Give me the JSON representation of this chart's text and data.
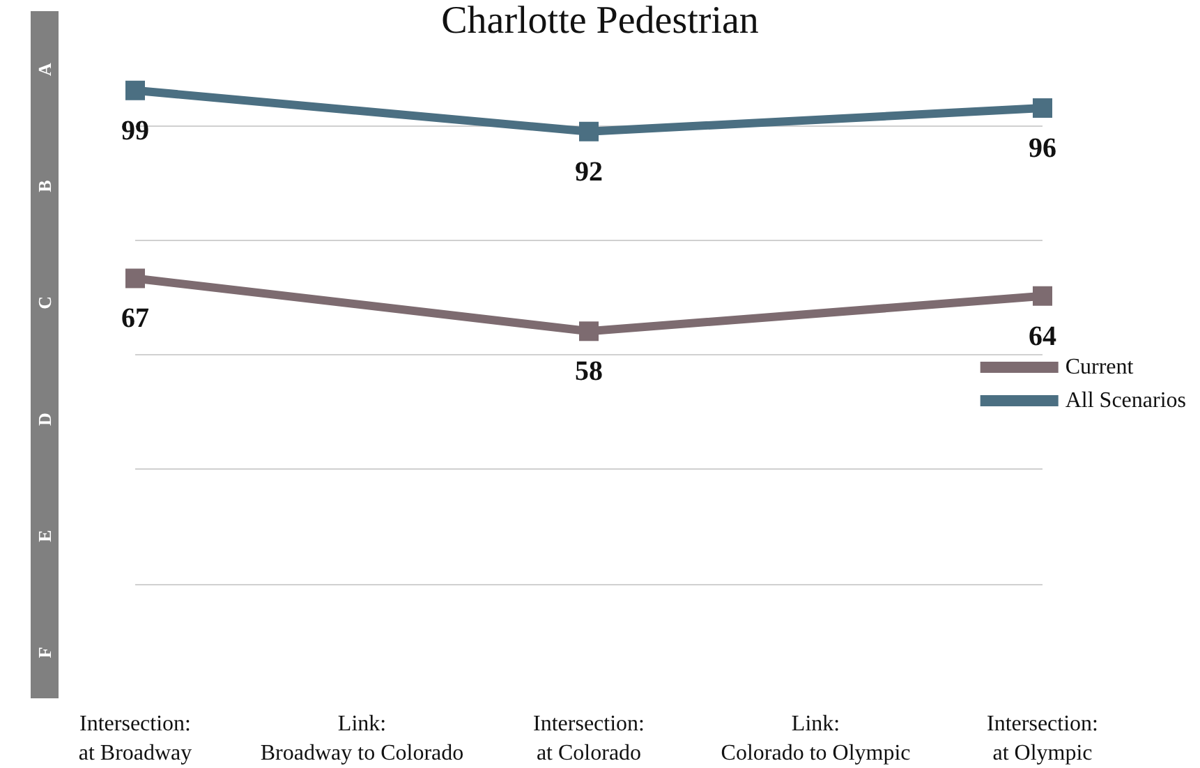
{
  "chart_data": {
    "type": "line",
    "title": "Charlotte Pedestrian",
    "categories": [
      "Intersection:\nat Broadway",
      "Link:\nBroadway to Colorado",
      "Intersection:\nat Colorado",
      "Link:\nColorado to Olympic",
      "Intersection:\nat Olympic"
    ],
    "series": [
      {
        "name": "Current",
        "color": "#7d6b70",
        "x": [
          "Intersection:\nat Broadway",
          "Intersection:\nat Colorado",
          "Intersection:\nat Olympic"
        ],
        "values": [
          67,
          58,
          64
        ]
      },
      {
        "name": "All Scenarios",
        "color": "#4b6f82",
        "x": [
          "Intersection:\nat Broadway",
          "Intersection:\nat Colorado",
          "Intersection:\nat Olympic"
        ],
        "values": [
          99,
          92,
          96
        ]
      }
    ],
    "annotations": [
      "A",
      "B",
      "C",
      "D",
      "E",
      "F"
    ],
    "ref_lines": [
      {
        "axis": "y",
        "value": 93,
        "color": "#d0d0d0"
      },
      {
        "axis": "y",
        "value": 73.5,
        "color": "#d0d0d0"
      },
      {
        "axis": "y",
        "value": 54,
        "color": "#d0d0d0"
      },
      {
        "axis": "y",
        "value": 34.5,
        "color": "#d0d0d0"
      },
      {
        "axis": "y",
        "value": 15,
        "color": "#d0d0d0"
      }
    ],
    "tick_labels": "x",
    "legend": "right",
    "marker": "square",
    "line_style": "solid",
    "data_labels": true
  }
}
